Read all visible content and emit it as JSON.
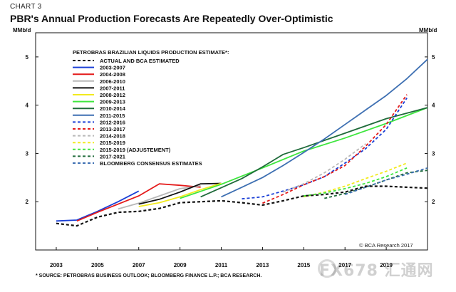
{
  "header": {
    "chart_label": "CHART 3",
    "title": "PBR's Annual Production Forecasts Are Repeatedly Over-Optimistic",
    "unit_left": "MMb/d",
    "unit_right": "MMb/d"
  },
  "footer": {
    "source": "* SOURCE: PETROBRAS BUSINESS OUTLOOK; BLOOMBERG FINANCE L.P.; BCA RESEARCH.",
    "copyright": "© BCA Research 2017"
  },
  "watermark": {
    "text": "FX678 汇通网"
  },
  "chart_data": {
    "type": "line",
    "title": "PBR's Annual Production Forecasts Are Repeatedly Over-Optimistic",
    "ylabel": "MMb/d",
    "xlim": [
      2002,
      2021
    ],
    "ylim": [
      1,
      5.5
    ],
    "x_ticks": [
      2003,
      2005,
      2007,
      2009,
      2011,
      2013,
      2015,
      2017,
      2019
    ],
    "y_ticks": [
      2,
      3,
      4,
      5
    ],
    "legend_title": "PETROBRAS BRAZILIAN LIQUIDS PRODUCTION ESTIMATE*:",
    "legend_position": "top-left",
    "series": [
      {
        "name": "ACTUAL AND BCA ESTIMATED",
        "color": "#111111",
        "dash": true,
        "points": [
          [
            2003,
            1.55
          ],
          [
            2004,
            1.5
          ],
          [
            2005,
            1.68
          ],
          [
            2006,
            1.78
          ],
          [
            2007,
            1.8
          ],
          [
            2008,
            1.86
          ],
          [
            2009,
            1.98
          ],
          [
            2010,
            2.0
          ],
          [
            2011,
            2.02
          ],
          [
            2012,
            1.98
          ],
          [
            2013,
            1.93
          ],
          [
            2014,
            2.02
          ],
          [
            2015,
            2.12
          ],
          [
            2016,
            2.15
          ],
          [
            2017,
            2.2
          ],
          [
            2018,
            2.32
          ],
          [
            2019,
            2.32
          ],
          [
            2020,
            2.3
          ],
          [
            2021,
            2.28
          ]
        ]
      },
      {
        "name": "2003-2007",
        "color": "#1a3fd6",
        "dash": false,
        "points": [
          [
            2003,
            1.6
          ],
          [
            2004,
            1.62
          ],
          [
            2005,
            1.8
          ],
          [
            2006,
            2.0
          ],
          [
            2007,
            2.22
          ]
        ]
      },
      {
        "name": "2004-2008",
        "color": "#e41a1a",
        "dash": false,
        "points": [
          [
            2004,
            1.6
          ],
          [
            2005,
            1.78
          ],
          [
            2006,
            1.95
          ],
          [
            2007,
            2.12
          ],
          [
            2008,
            2.37
          ],
          [
            2009,
            2.34
          ],
          [
            2010,
            2.3
          ]
        ]
      },
      {
        "name": "2006-2010",
        "color": "#b8b8b8",
        "dash": false,
        "points": [
          [
            2006,
            1.85
          ],
          [
            2007,
            1.97
          ],
          [
            2008,
            2.12
          ],
          [
            2009,
            2.27
          ],
          [
            2010,
            2.33
          ]
        ]
      },
      {
        "name": "2007-2011",
        "color": "#111111",
        "dash": false,
        "points": [
          [
            2007,
            1.95
          ],
          [
            2008,
            2.05
          ],
          [
            2009,
            2.2
          ],
          [
            2010,
            2.37
          ],
          [
            2011,
            2.38
          ]
        ]
      },
      {
        "name": "2008-2012",
        "color": "#f2ea1e",
        "dash": false,
        "points": [
          [
            2007,
            1.9
          ],
          [
            2008,
            1.98
          ],
          [
            2009,
            2.1
          ],
          [
            2010,
            2.25
          ],
          [
            2011,
            2.38
          ]
        ]
      },
      {
        "name": "2009-2013",
        "color": "#3ee63e",
        "dash": false,
        "points": [
          [
            2009,
            2.07
          ],
          [
            2011,
            2.36
          ],
          [
            2013,
            2.7
          ],
          [
            2015,
            3.05
          ],
          [
            2017,
            3.32
          ],
          [
            2019,
            3.62
          ],
          [
            2021,
            3.95
          ]
        ]
      },
      {
        "name": "2010-2014",
        "color": "#1f6b3a",
        "dash": false,
        "points": [
          [
            2010,
            2.1
          ],
          [
            2012,
            2.48
          ],
          [
            2013,
            2.72
          ],
          [
            2014,
            2.98
          ],
          [
            2015,
            3.12
          ],
          [
            2017,
            3.42
          ],
          [
            2019,
            3.72
          ],
          [
            2021,
            3.95
          ]
        ]
      },
      {
        "name": "2011-2015",
        "color": "#3d6fb2",
        "dash": false,
        "points": [
          [
            2011,
            2.1
          ],
          [
            2012,
            2.3
          ],
          [
            2013,
            2.5
          ],
          [
            2014,
            2.75
          ],
          [
            2015,
            3.02
          ],
          [
            2016,
            3.3
          ],
          [
            2017,
            3.6
          ],
          [
            2018,
            3.9
          ],
          [
            2019,
            4.2
          ],
          [
            2020,
            4.55
          ],
          [
            2021,
            4.95
          ]
        ]
      },
      {
        "name": "2012-2016",
        "color": "#1a3fd6",
        "dash": true,
        "points": [
          [
            2012,
            2.06
          ],
          [
            2013,
            2.1
          ],
          [
            2014,
            2.22
          ],
          [
            2015,
            2.35
          ],
          [
            2016,
            2.52
          ],
          [
            2017,
            2.8
          ],
          [
            2018,
            3.1
          ],
          [
            2019,
            3.5
          ],
          [
            2020,
            4.15
          ]
        ]
      },
      {
        "name": "2013-2017",
        "color": "#e41a1a",
        "dash": true,
        "points": [
          [
            2013,
            1.97
          ],
          [
            2014,
            2.15
          ],
          [
            2015,
            2.35
          ],
          [
            2016,
            2.52
          ],
          [
            2017,
            2.75
          ],
          [
            2018,
            3.15
          ],
          [
            2019,
            3.6
          ],
          [
            2020,
            4.22
          ]
        ]
      },
      {
        "name": "2014-2018",
        "color": "#b8b8b8",
        "dash": true,
        "points": [
          [
            2014,
            2.2
          ],
          [
            2015,
            2.37
          ],
          [
            2016,
            2.6
          ],
          [
            2017,
            2.88
          ],
          [
            2018,
            3.2
          ]
        ]
      },
      {
        "name": "2015-2019",
        "color": "#f2ea1e",
        "dash": true,
        "points": [
          [
            2015,
            2.1
          ],
          [
            2016,
            2.2
          ],
          [
            2017,
            2.32
          ],
          [
            2018,
            2.48
          ],
          [
            2019,
            2.63
          ],
          [
            2020,
            2.8
          ]
        ]
      },
      {
        "name": "2015-2019 (ADJUSTEMENT)",
        "color": "#3ee63e",
        "dash": true,
        "points": [
          [
            2015,
            2.12
          ],
          [
            2016,
            2.18
          ],
          [
            2017,
            2.27
          ],
          [
            2018,
            2.38
          ],
          [
            2019,
            2.52
          ],
          [
            2020,
            2.7
          ]
        ]
      },
      {
        "name": "2017-2021",
        "color": "#1f6b3a",
        "dash": true,
        "points": [
          [
            2016,
            2.07
          ],
          [
            2017,
            2.17
          ],
          [
            2018,
            2.3
          ],
          [
            2019,
            2.45
          ],
          [
            2020,
            2.6
          ],
          [
            2021,
            2.65
          ]
        ]
      },
      {
        "name": "BLOOMBERG CONSENSUS ESTIMATES",
        "color": "#3d6fb2",
        "dash": true,
        "points": [
          [
            2017,
            2.15
          ],
          [
            2018,
            2.3
          ],
          [
            2019,
            2.45
          ],
          [
            2020,
            2.57
          ],
          [
            2021,
            2.7
          ]
        ]
      }
    ]
  }
}
